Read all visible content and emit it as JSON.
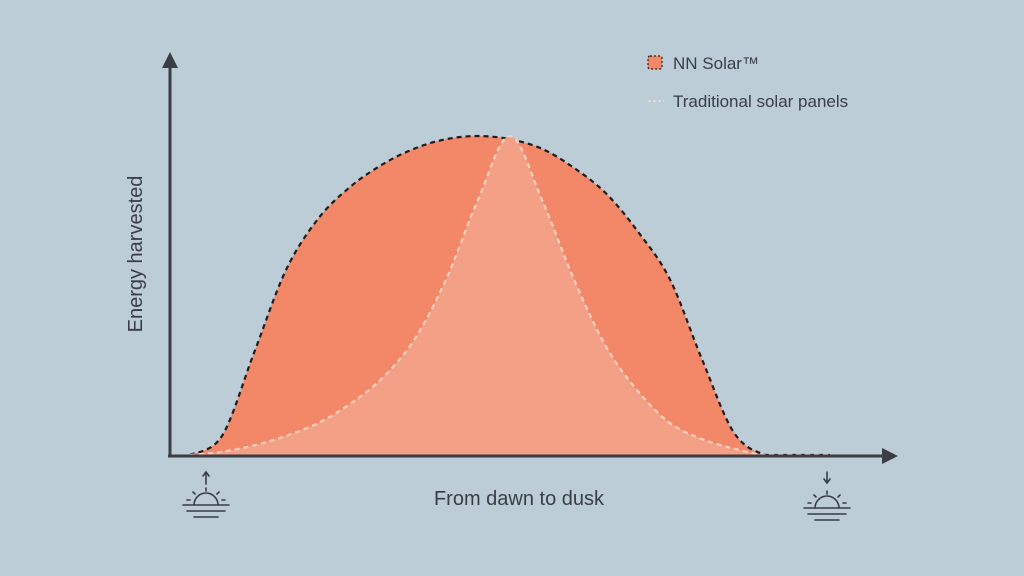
{
  "chart_data": {
    "type": "area",
    "title": "",
    "xlabel": "From dawn to dusk",
    "ylabel": "Energy harvested",
    "x_range": [
      "dawn",
      "dusk"
    ],
    "ylim": [
      0,
      1
    ],
    "grid": false,
    "legend_position": "top-right",
    "series": [
      {
        "name": "NN Solar™",
        "style": "filled area, dark dashed outline",
        "color": "#f28868",
        "x": [
          0,
          0.05,
          0.1,
          0.15,
          0.2,
          0.25,
          0.3,
          0.35,
          0.4,
          0.45,
          0.5,
          0.55,
          0.6,
          0.65,
          0.7,
          0.75,
          0.8,
          0.85,
          0.9,
          0.95,
          1
        ],
        "values": [
          0,
          0.06,
          0.32,
          0.58,
          0.74,
          0.84,
          0.91,
          0.96,
          0.99,
          1.0,
          0.99,
          0.96,
          0.9,
          0.82,
          0.7,
          0.55,
          0.3,
          0.07,
          0,
          0,
          0
        ]
      },
      {
        "name": "Traditional solar panels",
        "style": "filled area, light dashed outline",
        "color": "#f3a087",
        "x": [
          0,
          0.05,
          0.1,
          0.15,
          0.2,
          0.25,
          0.3,
          0.35,
          0.4,
          0.45,
          0.5,
          0.55,
          0.6,
          0.65,
          0.7,
          0.75,
          0.8,
          0.85,
          0.9,
          0.95,
          1
        ],
        "values": [
          0,
          0.01,
          0.03,
          0.06,
          0.1,
          0.16,
          0.24,
          0.36,
          0.55,
          0.8,
          1.0,
          0.8,
          0.55,
          0.34,
          0.2,
          0.1,
          0.05,
          0.02,
          0,
          0,
          0
        ]
      }
    ],
    "annotations": [
      {
        "name": "sunrise-icon",
        "position": "start of x-axis"
      },
      {
        "name": "sunset-icon",
        "position": "end of x-axis"
      }
    ],
    "colors": {
      "background": "#bccdd8",
      "axis": "#3a3d45",
      "nn_fill": "#f28868",
      "traditional_fill": "#f3a087",
      "nn_outline": "#1d1d1d",
      "traditional_outline": "#f8d0c0"
    }
  }
}
